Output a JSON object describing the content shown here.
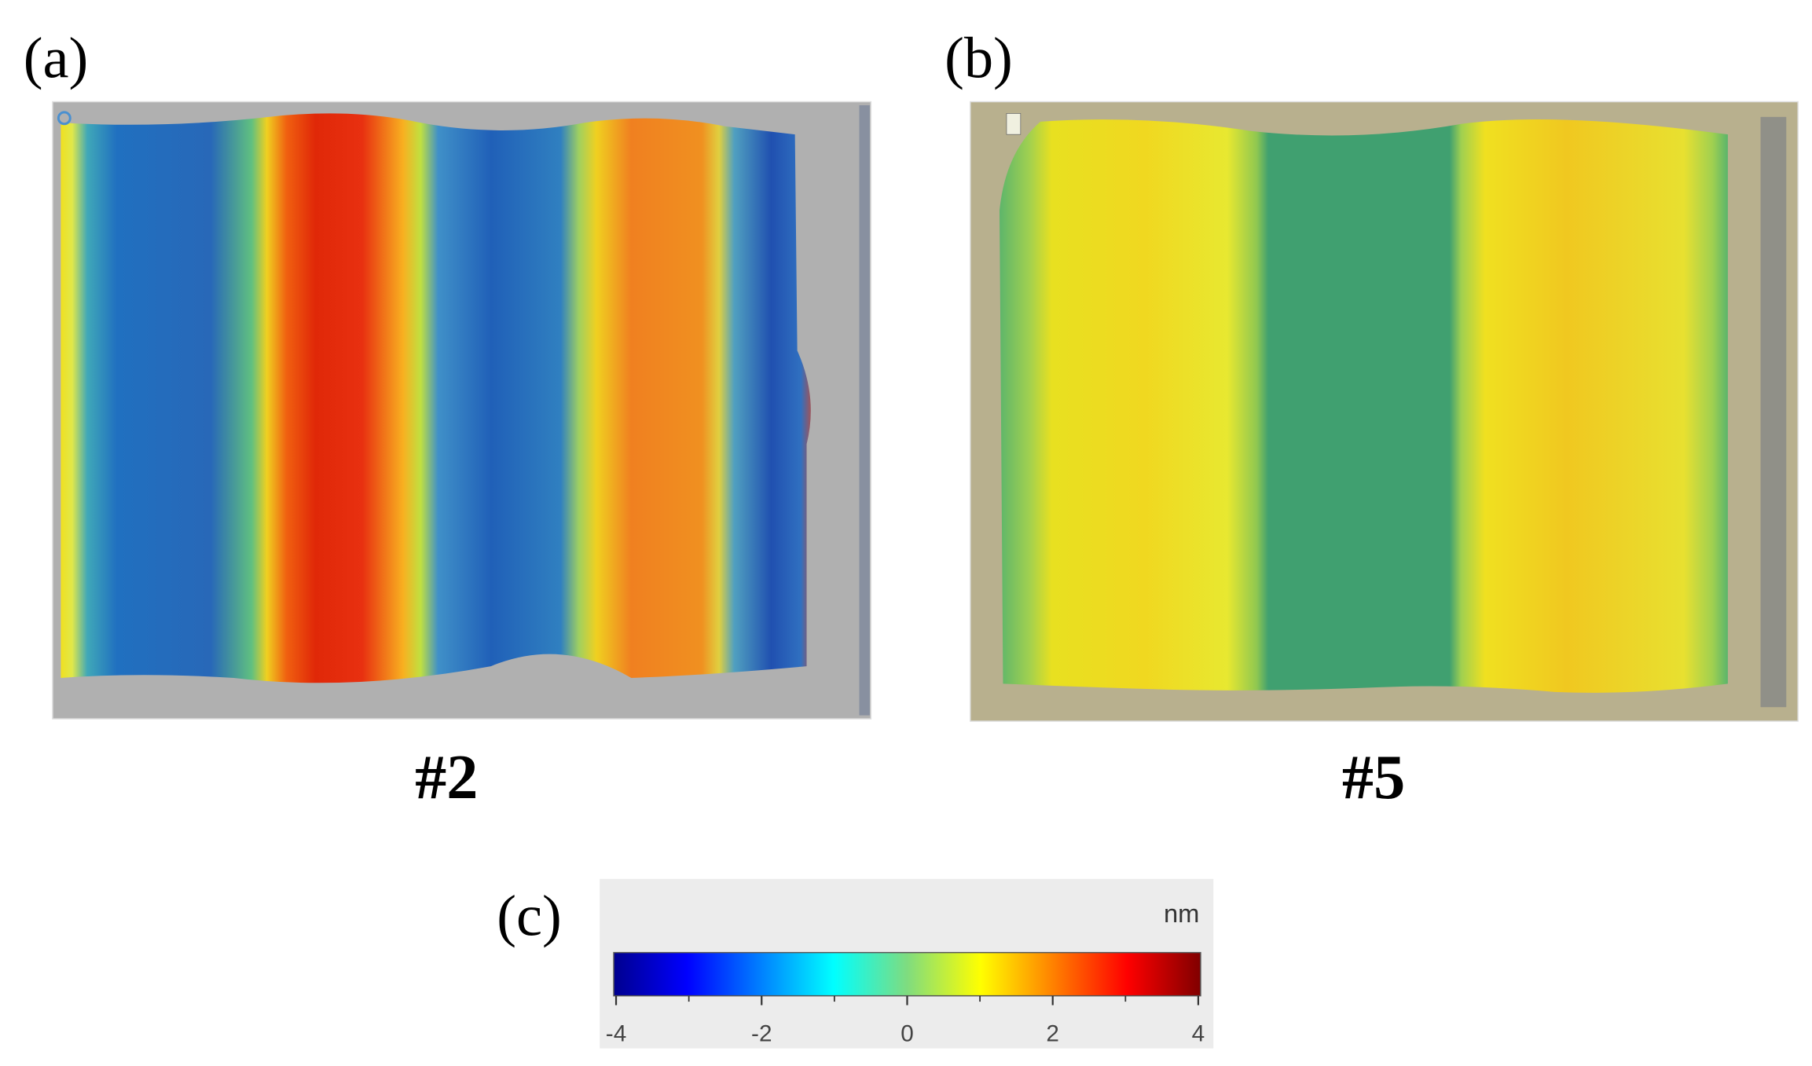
{
  "panels": [
    {
      "label": "(a)",
      "caption": "#2"
    },
    {
      "label": "(b)",
      "caption": "#5"
    }
  ],
  "colorbar": {
    "label": "(c)",
    "unit": "nm",
    "range": [
      -4,
      4
    ],
    "ticks": [
      -4,
      -2,
      0,
      2,
      4
    ],
    "minor_ticks": [
      -3,
      -1,
      1,
      3
    ]
  }
}
